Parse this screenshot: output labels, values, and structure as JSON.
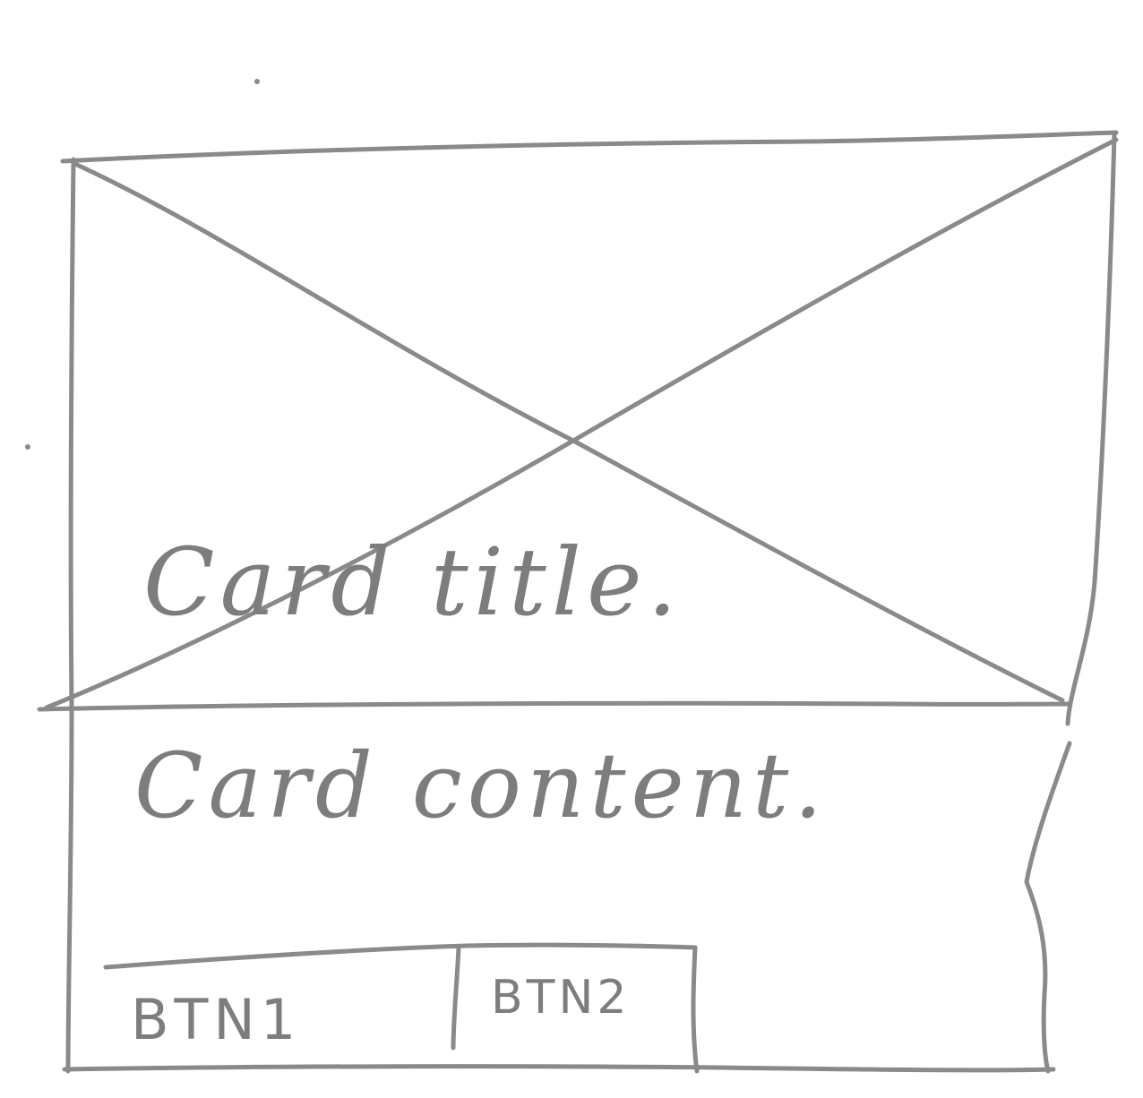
{
  "card": {
    "title": "Card title.",
    "content": "Card content.",
    "buttons": [
      {
        "label": "BTN1"
      },
      {
        "label": "BTN2"
      }
    ]
  },
  "image_placeholder": {
    "icon": "crossed-box-placeholder"
  },
  "colors": {
    "pencil": "#8a8a8a",
    "paper": "#ffffff"
  }
}
